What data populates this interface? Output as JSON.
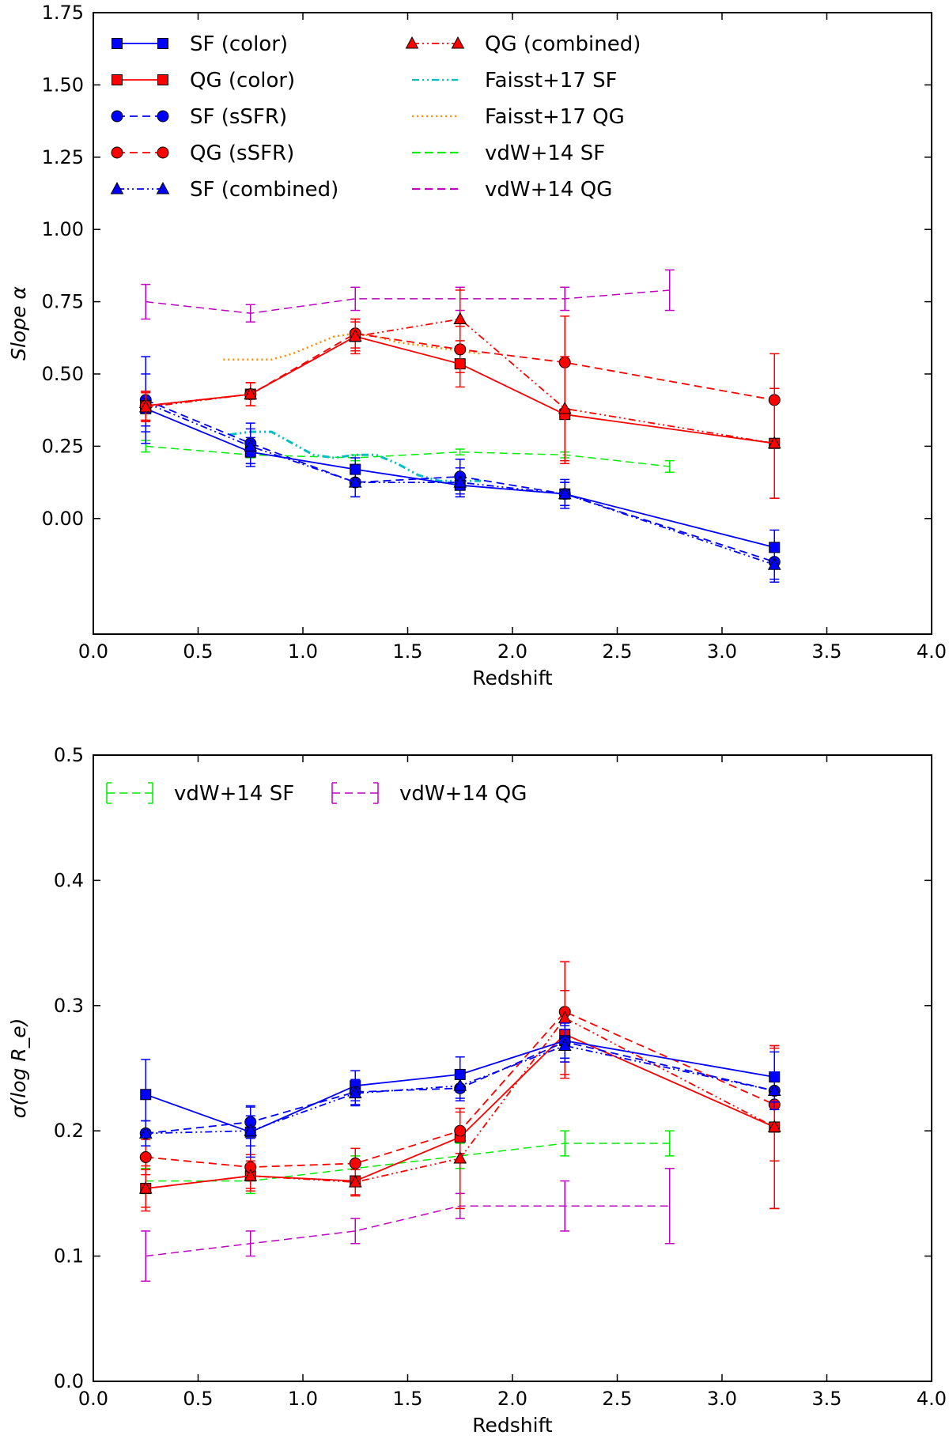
{
  "chart_data": [
    {
      "type": "line",
      "panel": "top",
      "xlabel": "Redshift",
      "ylabel": "Slope α",
      "xlim": [
        0.0,
        4.0
      ],
      "ylim": [
        -0.4,
        1.75
      ],
      "xticks": [
        0.0,
        0.5,
        1.0,
        1.5,
        2.0,
        2.5,
        3.0,
        3.5,
        4.0
      ],
      "xtick_labels": [
        "0.0",
        "0.5",
        "1.0",
        "1.5",
        "2.0",
        "2.5",
        "3.0",
        "3.5",
        "4.0"
      ],
      "yticks": [
        0.0,
        0.25,
        0.5,
        0.75,
        1.0,
        1.25,
        1.5,
        1.75
      ],
      "ytick_labels": [
        "0.00",
        "0.25",
        "0.50",
        "0.75",
        "1.00",
        "1.25",
        "1.50",
        "1.75"
      ],
      "legend": [
        {
          "label": "SF (color)",
          "color": "#0000ff",
          "marker": "square",
          "dash": ""
        },
        {
          "label": "QG (color)",
          "color": "#ff0000",
          "marker": "square",
          "dash": ""
        },
        {
          "label": "SF (sSFR)",
          "color": "#0000ff",
          "marker": "circle",
          "dash": "10,6"
        },
        {
          "label": "QG (sSFR)",
          "color": "#ff0000",
          "marker": "circle",
          "dash": "10,6"
        },
        {
          "label": "SF (combined)",
          "color": "#0000ff",
          "marker": "triangle",
          "dash": "9,4,2,4,2,4"
        },
        {
          "label": "QG (combined)",
          "color": "#ff0000",
          "marker": "triangle",
          "dash": "9,4,2,4,2,4"
        },
        {
          "label": "Faisst+17 SF",
          "color": "#00bfbf",
          "marker": "none",
          "dash": "9,4,2,4,2,4"
        },
        {
          "label": "Faisst+17 QG",
          "color": "#ff8c00",
          "marker": "none",
          "dash": "2,4"
        },
        {
          "label": "vdW+14 SF",
          "color": "#00ee00",
          "marker": "none",
          "dash": "10,6"
        },
        {
          "label": "vdW+14 QG",
          "color": "#bf00bf",
          "marker": "none",
          "dash": "10,6"
        }
      ],
      "series": [
        {
          "name": "vdW+14 QG",
          "color": "#bf00bf",
          "dash": "10,6",
          "marker": "none",
          "width": 1.5,
          "x": [
            0.25,
            0.75,
            1.25,
            1.75,
            2.25,
            2.75
          ],
          "y": [
            0.75,
            0.71,
            0.76,
            0.76,
            0.76,
            0.79
          ],
          "err": [
            0.06,
            0.03,
            0.04,
            0.04,
            0.04,
            0.07
          ]
        },
        {
          "name": "vdW+14 SF",
          "color": "#00ee00",
          "dash": "10,6",
          "marker": "none",
          "width": 1.5,
          "x": [
            0.25,
            0.75,
            1.25,
            1.75,
            2.25,
            2.75
          ],
          "y": [
            0.25,
            0.22,
            0.21,
            0.23,
            0.22,
            0.18
          ],
          "err": [
            0.02,
            0.01,
            0.01,
            0.01,
            0.01,
            0.02
          ]
        },
        {
          "name": "Faisst+17 SF",
          "color": "#00bfbf",
          "dash": "9,4,2,4,2,4",
          "marker": "none",
          "width": 3,
          "x": [
            0.65,
            0.75,
            0.85,
            0.95,
            1.05,
            1.15,
            1.25,
            1.35,
            1.45,
            1.55,
            1.65,
            1.75,
            1.85
          ],
          "y": [
            0.29,
            0.3,
            0.3,
            0.26,
            0.22,
            0.21,
            0.22,
            0.22,
            0.19,
            0.15,
            0.13,
            0.13,
            0.13
          ],
          "err": []
        },
        {
          "name": "Faisst+17 QG",
          "color": "#ff8c00",
          "dash": "2,4",
          "marker": "none",
          "width": 2.5,
          "x": [
            0.62,
            0.75,
            0.85,
            0.95,
            1.05,
            1.15,
            1.25,
            1.35,
            1.45,
            1.55,
            1.65,
            1.75,
            1.85
          ],
          "y": [
            0.55,
            0.55,
            0.55,
            0.57,
            0.6,
            0.63,
            0.64,
            0.63,
            0.61,
            0.6,
            0.59,
            0.58,
            0.57
          ],
          "err": []
        },
        {
          "name": "SF (color)",
          "color": "#0000ff",
          "dash": "",
          "marker": "square",
          "width": 1.8,
          "x": [
            0.25,
            0.75,
            1.25,
            1.75,
            2.25,
            3.25
          ],
          "y": [
            0.38,
            0.23,
            0.17,
            0.115,
            0.085,
            -0.1
          ],
          "err": [
            0.06,
            0.05,
            0.04,
            0.04,
            0.04,
            0.06
          ]
        },
        {
          "name": "SF (sSFR)",
          "color": "#0000ff",
          "dash": "10,6",
          "marker": "circle",
          "width": 1.8,
          "x": [
            0.25,
            0.75,
            1.25,
            1.75,
            2.25,
            3.25
          ],
          "y": [
            0.41,
            0.26,
            0.125,
            0.145,
            0.085,
            -0.15
          ],
          "err": [
            0.15,
            0.07,
            0.05,
            0.06,
            0.05,
            0.06
          ]
        },
        {
          "name": "SF (combined)",
          "color": "#0000ff",
          "dash": "9,4,2,4,2,4",
          "marker": "triangle",
          "width": 1.8,
          "x": [
            0.25,
            0.75,
            1.25,
            1.75,
            2.25,
            3.25
          ],
          "y": [
            0.4,
            0.25,
            0.125,
            0.125,
            0.085,
            -0.16
          ],
          "err": [
            0.1,
            0.06,
            0.05,
            0.05,
            0.04,
            0.06
          ]
        },
        {
          "name": "QG (color)",
          "color": "#ff0000",
          "dash": "",
          "marker": "square",
          "width": 1.8,
          "x": [
            0.25,
            0.75,
            1.25,
            1.75,
            2.25,
            3.25
          ],
          "y": [
            0.39,
            0.43,
            0.63,
            0.535,
            0.36,
            0.26
          ],
          "err": [
            0.05,
            0.04,
            0.05,
            0.08,
            0.17,
            0.19
          ]
        },
        {
          "name": "QG (sSFR)",
          "color": "#ff0000",
          "dash": "10,6",
          "marker": "circle",
          "width": 1.8,
          "x": [
            0.25,
            0.75,
            1.25,
            1.75,
            2.25,
            3.25
          ],
          "y": [
            0.39,
            0.43,
            0.64,
            0.585,
            0.54,
            0.41
          ],
          "err": [
            0.05,
            0.04,
            0.05,
            0.08,
            0.16,
            0.16
          ]
        },
        {
          "name": "QG (combined)",
          "color": "#ff0000",
          "dash": "9,4,2,4,2,4",
          "marker": "triangle",
          "width": 1.8,
          "x": [
            0.25,
            0.75,
            1.25,
            1.75,
            2.25,
            3.25
          ],
          "y": [
            0.385,
            0.43,
            0.63,
            0.69,
            0.38,
            0.26
          ],
          "err": [
            0.05,
            0.04,
            0.06,
            0.1,
            0.18,
            0.19
          ]
        }
      ]
    },
    {
      "type": "line",
      "panel": "bottom",
      "xlabel": "Redshift",
      "ylabel": "σ(log R_e)",
      "xlim": [
        0.0,
        4.0
      ],
      "ylim": [
        0.0,
        0.5
      ],
      "xticks": [
        0.0,
        0.5,
        1.0,
        1.5,
        2.0,
        2.5,
        3.0,
        3.5,
        4.0
      ],
      "xtick_labels": [
        "0.0",
        "0.5",
        "1.0",
        "1.5",
        "2.0",
        "2.5",
        "3.0",
        "3.5",
        "4.0"
      ],
      "yticks": [
        0.0,
        0.1,
        0.2,
        0.3,
        0.4,
        0.5
      ],
      "ytick_labels": [
        "0.0",
        "0.1",
        "0.2",
        "0.3",
        "0.4",
        "0.5"
      ],
      "legend": [
        {
          "label": "vdW+14 SF",
          "color": "#00ee00",
          "marker": "errorbar",
          "dash": "10,6"
        },
        {
          "label": "vdW+14 QG",
          "color": "#bf00bf",
          "marker": "errorbar",
          "dash": "10,6"
        }
      ],
      "series": [
        {
          "name": "vdW+14 QG",
          "color": "#bf00bf",
          "dash": "10,6",
          "marker": "none",
          "width": 1.5,
          "x": [
            0.25,
            0.75,
            1.25,
            1.75,
            2.25,
            2.75
          ],
          "y": [
            0.1,
            0.11,
            0.12,
            0.14,
            0.14,
            0.14
          ],
          "err": [
            0.02,
            0.01,
            0.01,
            0.01,
            0.02,
            0.03
          ]
        },
        {
          "name": "vdW+14 SF",
          "color": "#00ee00",
          "dash": "10,6",
          "marker": "none",
          "width": 1.5,
          "x": [
            0.25,
            0.75,
            1.25,
            1.75,
            2.25,
            2.75
          ],
          "y": [
            0.16,
            0.16,
            0.17,
            0.18,
            0.19,
            0.19
          ],
          "err": [
            0.01,
            0.01,
            0.01,
            0.01,
            0.01,
            0.01
          ]
        },
        {
          "name": "QG (color)",
          "color": "#ff0000",
          "dash": "",
          "marker": "square",
          "width": 1.8,
          "x": [
            0.25,
            0.75,
            1.25,
            1.75,
            2.25,
            3.25
          ],
          "y": [
            0.154,
            0.164,
            0.16,
            0.195,
            0.277,
            0.203
          ],
          "err": [
            0.018,
            0.012,
            0.012,
            0.02,
            0.035,
            0.065
          ]
        },
        {
          "name": "QG (sSFR)",
          "color": "#ff0000",
          "dash": "10,6",
          "marker": "circle",
          "width": 1.8,
          "x": [
            0.25,
            0.75,
            1.25,
            1.75,
            2.25,
            3.25
          ],
          "y": [
            0.179,
            0.171,
            0.174,
            0.2,
            0.295,
            0.221
          ],
          "err": [
            0.014,
            0.01,
            0.012,
            0.018,
            0.04,
            0.045
          ]
        },
        {
          "name": "QG (combined)",
          "color": "#ff0000",
          "dash": "9,4,2,4,2,4",
          "marker": "triangle",
          "width": 1.8,
          "x": [
            0.25,
            0.75,
            1.25,
            1.75,
            2.25,
            3.25
          ],
          "y": [
            0.154,
            0.164,
            0.159,
            0.178,
            0.29,
            0.203
          ],
          "err": [
            0.015,
            0.01,
            0.01,
            0.04,
            0.045,
            0.065
          ]
        },
        {
          "name": "SF (color)",
          "color": "#0000ff",
          "dash": "",
          "marker": "square",
          "width": 1.8,
          "x": [
            0.25,
            0.75,
            1.25,
            1.75,
            2.25,
            3.25
          ],
          "y": [
            0.229,
            0.199,
            0.236,
            0.245,
            0.272,
            0.243
          ],
          "err": [
            0.028,
            0.02,
            0.012,
            0.014,
            0.014,
            0.02
          ]
        },
        {
          "name": "SF (sSFR)",
          "color": "#0000ff",
          "dash": "10,6",
          "marker": "circle",
          "width": 1.8,
          "x": [
            0.25,
            0.75,
            1.25,
            1.75,
            2.25,
            3.25
          ],
          "y": [
            0.198,
            0.207,
            0.231,
            0.234,
            0.271,
            0.232
          ],
          "err": [
            0.01,
            0.013,
            0.01,
            0.01,
            0.013,
            0.015
          ]
        },
        {
          "name": "SF (combined)",
          "color": "#0000ff",
          "dash": "9,4,2,4,2,4",
          "marker": "triangle",
          "width": 1.8,
          "x": [
            0.25,
            0.75,
            1.25,
            1.75,
            2.25,
            3.25
          ],
          "y": [
            0.198,
            0.2,
            0.23,
            0.236,
            0.268,
            0.232
          ],
          "err": [
            0.01,
            0.012,
            0.01,
            0.01,
            0.013,
            0.015
          ]
        }
      ]
    }
  ]
}
